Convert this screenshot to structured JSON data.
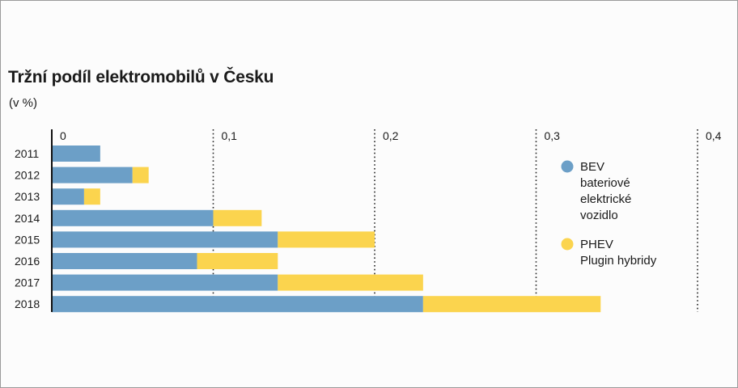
{
  "title": "Tržní podíl elektromobilů v Česku",
  "unit": "(v %)",
  "colors": {
    "bev": "#6c9fc7",
    "phev": "#fbd44e",
    "axis": "#111111",
    "grid": "#222222"
  },
  "chart_data": {
    "type": "bar",
    "orientation": "horizontal",
    "stacked": true,
    "categories": [
      "2011",
      "2012",
      "2013",
      "2014",
      "2015",
      "2016",
      "2017",
      "2018"
    ],
    "x_tick_labels": [
      "0",
      "0,1",
      "0,2",
      "0,3",
      "0,4"
    ],
    "xlim": [
      0,
      0.4
    ],
    "grid": "vertical dotted at ticks",
    "legend_position": "right",
    "series": [
      {
        "key": "bev",
        "name": "BEV",
        "label_lines": [
          "BEV",
          "bateriové",
          "elektrické",
          "vozidlo"
        ],
        "values": [
          0.03,
          0.05,
          0.02,
          0.1,
          0.14,
          0.09,
          0.14,
          0.23
        ]
      },
      {
        "key": "phev",
        "name": "PHEV",
        "label_lines": [
          "PHEV",
          "Plugin hybridy"
        ],
        "values": [
          0,
          0.01,
          0.01,
          0.03,
          0.06,
          0.05,
          0.09,
          0.11
        ]
      }
    ]
  }
}
